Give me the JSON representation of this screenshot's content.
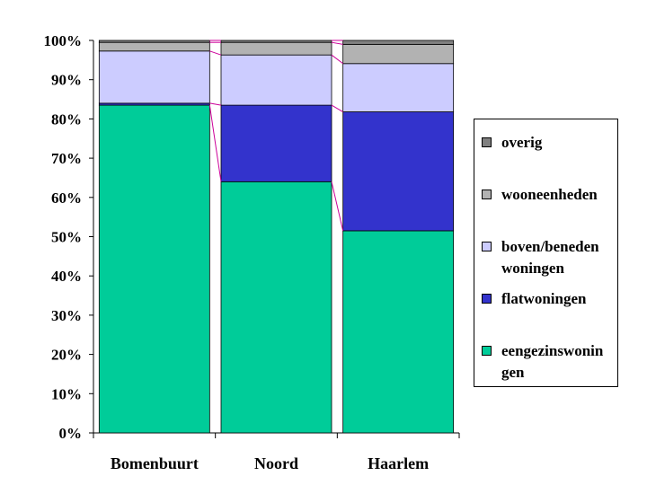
{
  "chart_data": {
    "type": "bar",
    "stacked": true,
    "percent": true,
    "categories": [
      "Bomenbuurt",
      "Noord",
      "Haarlem"
    ],
    "series": [
      {
        "name": "eengezinswoningen",
        "label": "eengezinswonin gen",
        "color": "#00CC99",
        "values": [
          83.5,
          64.0,
          51.5
        ]
      },
      {
        "name": "flatwoningen",
        "label": "flatwoningen",
        "color": "#3333CC",
        "values": [
          0.5,
          19.5,
          30.3
        ]
      },
      {
        "name": "boven/beneden woningen",
        "label": "boven/beneden woningen",
        "color": "#CCCCFF",
        "values": [
          13.3,
          12.8,
          12.3
        ]
      },
      {
        "name": "wooneenheden",
        "label": "wooneenheden",
        "color": "#B2B2B2",
        "values": [
          2.2,
          3.2,
          4.9
        ]
      },
      {
        "name": "overig",
        "label": "overig",
        "color": "#808080",
        "values": [
          0.5,
          0.5,
          1.0
        ]
      }
    ],
    "y_ticks": [
      "0%",
      "10%",
      "20%",
      "30%",
      "40%",
      "50%",
      "60%",
      "70%",
      "80%",
      "90%",
      "100%"
    ],
    "ylim": [
      0,
      100
    ],
    "series_lines_color": "#CC0099",
    "legend_position": "right",
    "grid": false
  }
}
